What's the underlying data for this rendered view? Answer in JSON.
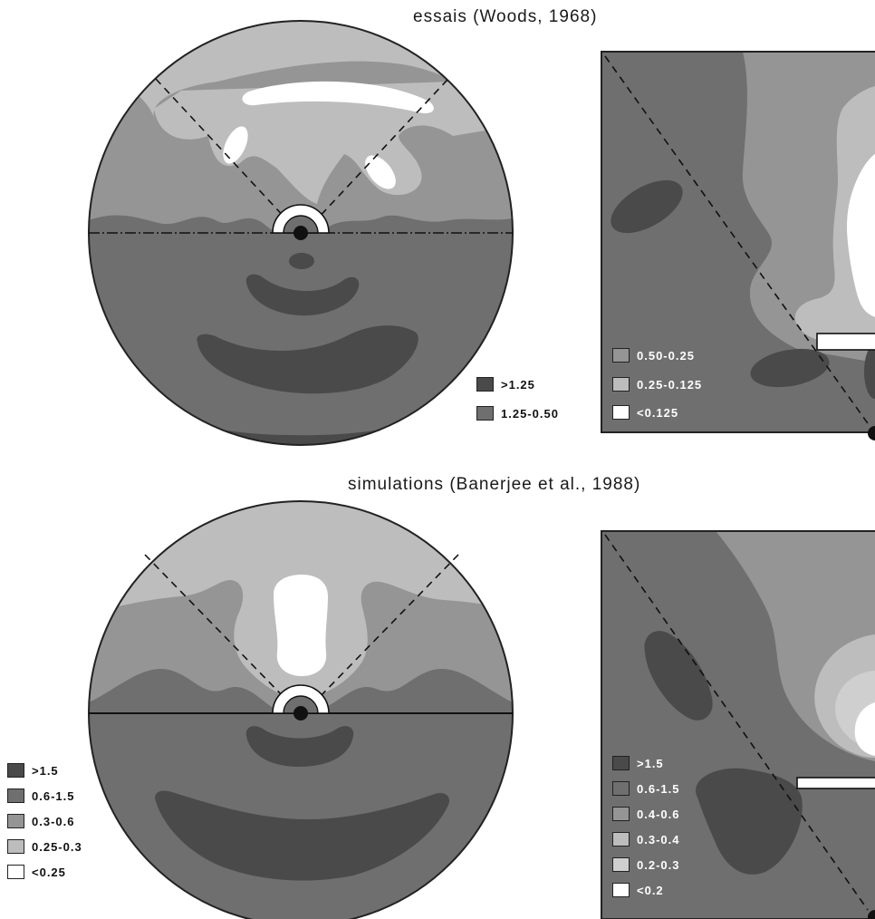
{
  "titles": {
    "experiment": "essais (Woods, 1968)",
    "simulation": "simulations (Banerjee et al., 1988)"
  },
  "legend_experiment_circle": [
    {
      "label": ">1.25",
      "color": "#4a4a4a"
    },
    {
      "label": "1.25-0.50",
      "color": "#6f6f6f"
    }
  ],
  "legend_experiment_square": [
    {
      "label": "0.50-0.25",
      "color": "#959595"
    },
    {
      "label": "0.25-0.125",
      "color": "#bdbdbd"
    },
    {
      "label": "<0.125",
      "color": "#ffffff"
    }
  ],
  "legend_simulation_circle": [
    {
      "label": ">1.5",
      "color": "#4a4a4a"
    },
    {
      "label": "0.6-1.5",
      "color": "#6f6f6f"
    },
    {
      "label": "0.3-0.6",
      "color": "#959595"
    },
    {
      "label": "0.25-0.3",
      "color": "#bdbdbd"
    },
    {
      "label": "<0.25",
      "color": "#ffffff"
    }
  ],
  "legend_simulation_square": [
    {
      "label": ">1.5",
      "color": "#4a4a4a"
    },
    {
      "label": "0.6-1.5",
      "color": "#6f6f6f"
    },
    {
      "label": "0.4-0.6",
      "color": "#959595"
    },
    {
      "label": "0.3-0.4",
      "color": "#bdbdbd"
    },
    {
      "label": "0.2-0.3",
      "color": "#cfcfcf"
    },
    {
      "label": "<0.2",
      "color": "#ffffff"
    }
  ]
}
